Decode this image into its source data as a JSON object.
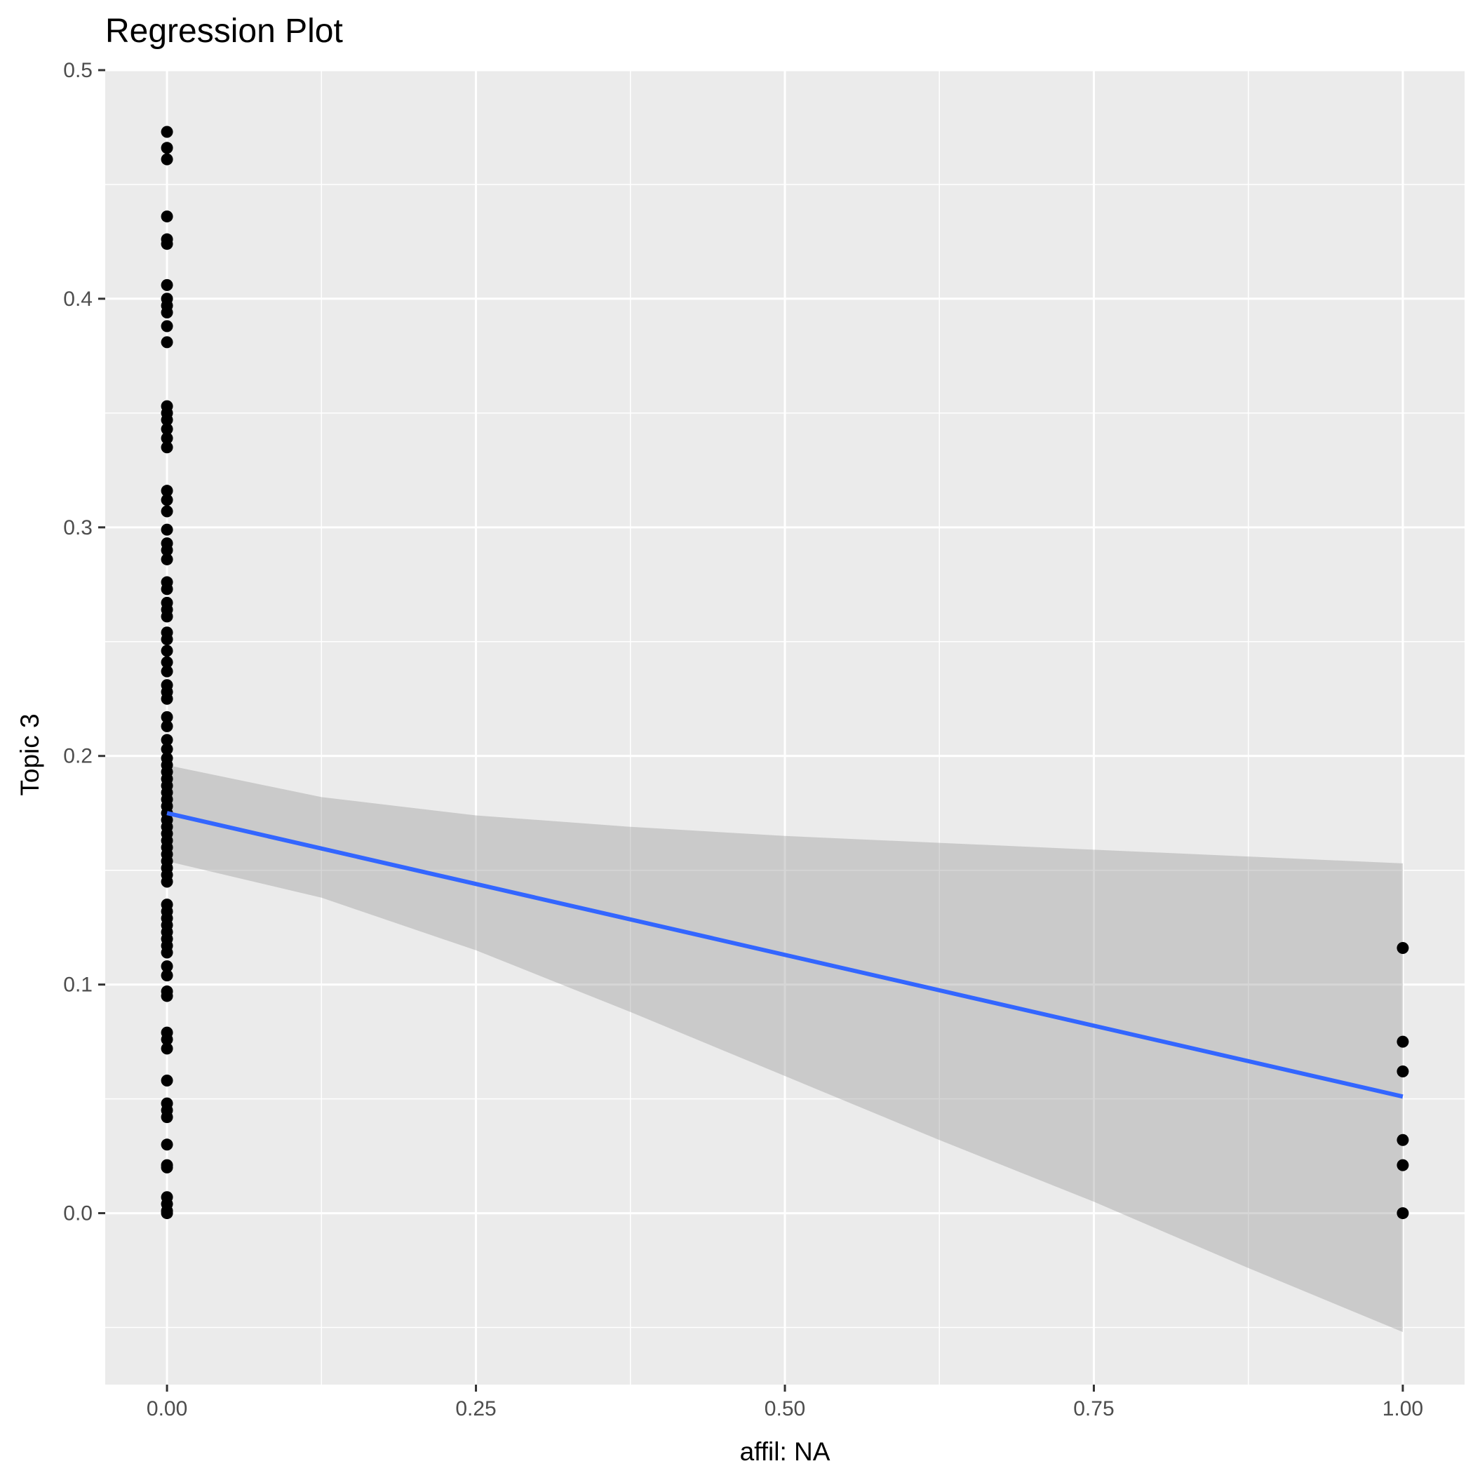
{
  "chart_data": {
    "type": "scatter",
    "title": "Regression Plot",
    "xlabel": "affil: NA",
    "ylabel": "Topic 3",
    "xlim": [
      -0.05,
      1.05
    ],
    "ylim": [
      -0.075,
      0.5
    ],
    "x_ticks": [
      0.0,
      0.25,
      0.5,
      0.75,
      1.0
    ],
    "x_tick_labels": [
      "0.00",
      "0.25",
      "0.50",
      "0.75",
      "1.00"
    ],
    "y_ticks": [
      0.0,
      0.1,
      0.2,
      0.3,
      0.4,
      0.5
    ],
    "y_tick_labels": [
      "0.0",
      "0.1",
      "0.2",
      "0.3",
      "0.4",
      "0.5"
    ],
    "grid": true,
    "colors": {
      "panel": "#ebebeb",
      "grid": "#ffffff",
      "points": "#000000",
      "fit_line": "#3366ff",
      "confidence_band": "#999999"
    },
    "points": {
      "x0_y": [
        0.473,
        0.466,
        0.461,
        0.436,
        0.426,
        0.424,
        0.406,
        0.4,
        0.397,
        0.394,
        0.388,
        0.381,
        0.353,
        0.35,
        0.347,
        0.343,
        0.339,
        0.335,
        0.316,
        0.312,
        0.307,
        0.299,
        0.293,
        0.29,
        0.286,
        0.276,
        0.273,
        0.267,
        0.264,
        0.261,
        0.254,
        0.251,
        0.246,
        0.241,
        0.237,
        0.231,
        0.228,
        0.225,
        0.217,
        0.213,
        0.207,
        0.203,
        0.199,
        0.196,
        0.193,
        0.19,
        0.187,
        0.184,
        0.181,
        0.178,
        0.175,
        0.172,
        0.169,
        0.166,
        0.163,
        0.16,
        0.157,
        0.154,
        0.151,
        0.148,
        0.145,
        0.135,
        0.132,
        0.129,
        0.126,
        0.123,
        0.12,
        0.117,
        0.114,
        0.108,
        0.104,
        0.097,
        0.095,
        0.079,
        0.076,
        0.072,
        0.058,
        0.048,
        0.045,
        0.042,
        0.03,
        0.021,
        0.02,
        0.007,
        0.004,
        0.001,
        0.0
      ],
      "x1_y": [
        0.116,
        0.075,
        0.062,
        0.032,
        0.021,
        0.0
      ]
    },
    "fit": {
      "x": [
        0.0,
        1.0
      ],
      "y": [
        0.175,
        0.051
      ]
    },
    "confidence_band": {
      "x": [
        0.0,
        0.125,
        0.25,
        0.375,
        0.5,
        0.625,
        0.75,
        0.875,
        1.0
      ],
      "upper": [
        0.196,
        0.182,
        0.174,
        0.169,
        0.165,
        0.162,
        0.159,
        0.156,
        0.153
      ],
      "lower": [
        0.154,
        0.138,
        0.115,
        0.088,
        0.06,
        0.032,
        0.005,
        -0.024,
        -0.052
      ]
    }
  }
}
